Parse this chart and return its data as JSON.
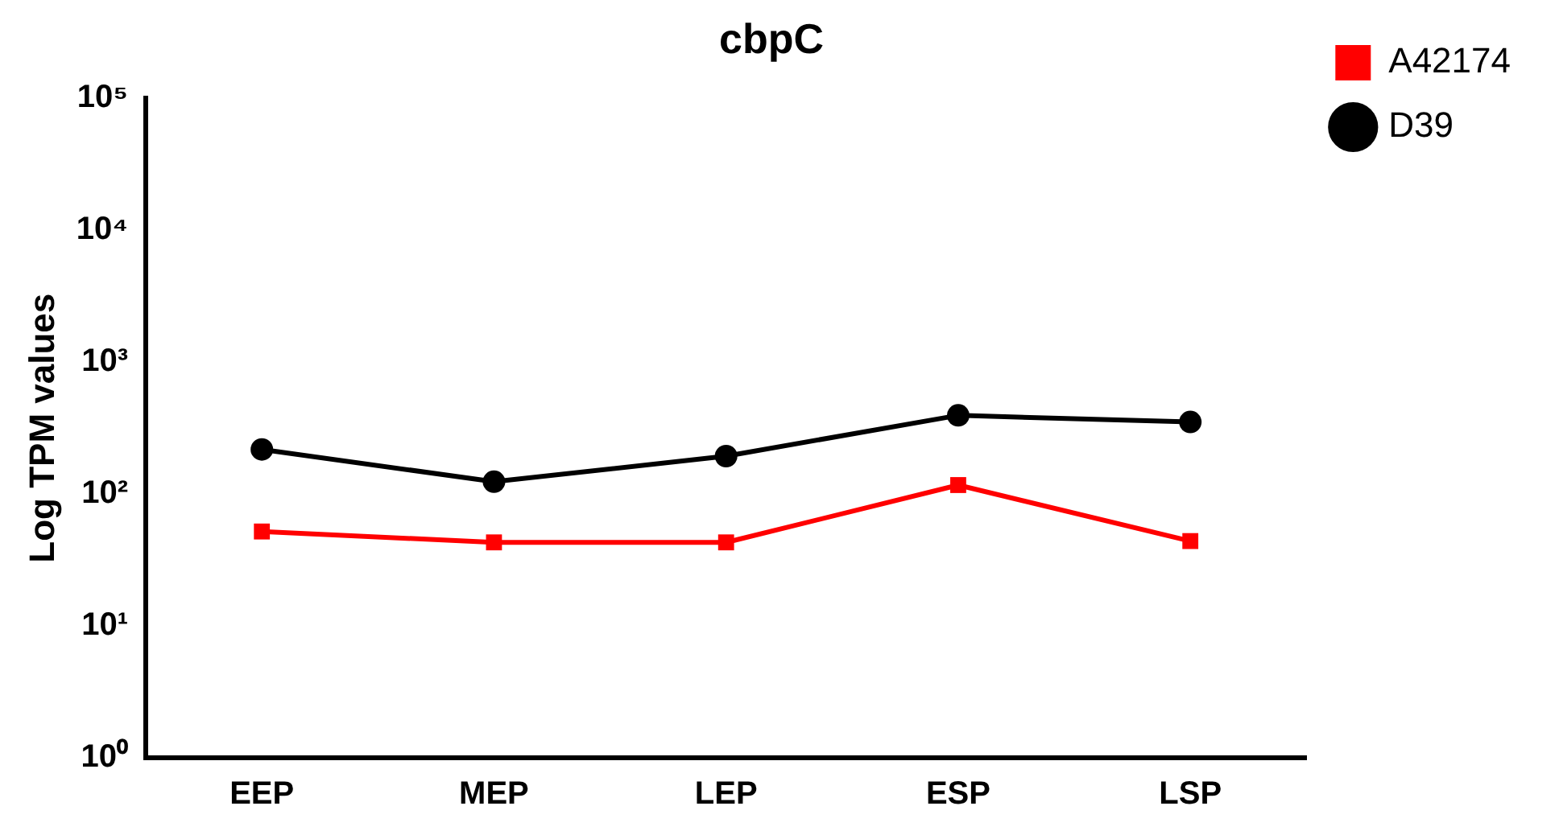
{
  "chart_data": {
    "type": "line",
    "title": "cbpC",
    "ylabel": "Log TPM values",
    "categories": [
      "EEP",
      "MEP",
      "LEP",
      "ESP",
      "LSP"
    ],
    "series": [
      {
        "name": "A42174",
        "color": "#ff0000",
        "marker": "square",
        "values": [
          52,
          43,
          43,
          117,
          44
        ]
      },
      {
        "name": "D39",
        "color": "#000000",
        "marker": "circle",
        "values": [
          218,
          124,
          194,
          395,
          352
        ]
      }
    ],
    "log": "y",
    "ylim": [
      1,
      100000
    ],
    "yticks": [
      {
        "value": 1,
        "label": "10⁰"
      },
      {
        "value": 10,
        "label": "10¹"
      },
      {
        "value": 100,
        "label": "10²"
      },
      {
        "value": 1000,
        "label": "10³"
      },
      {
        "value": 10000,
        "label": "10⁴"
      },
      {
        "value": 100000,
        "label": "10⁵"
      }
    ],
    "grid": false,
    "legend": "top right",
    "line_style": "solid"
  }
}
